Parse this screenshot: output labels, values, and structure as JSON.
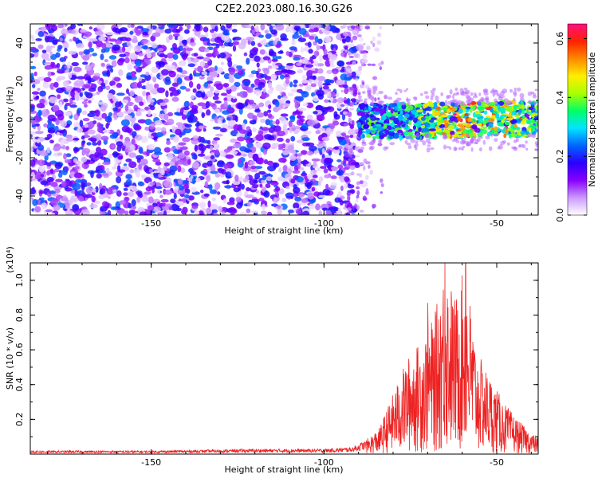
{
  "title": "C2E2.2023.080.16.30.G26",
  "chart_data": [
    {
      "type": "heatmap",
      "xlabel": "Height of straight line (km)",
      "ylabel": "Frequency (Hz)",
      "xlim": [
        -185,
        -38
      ],
      "ylim": [
        -50,
        50
      ],
      "x_ticks": [
        -150,
        -100,
        -50
      ],
      "y_ticks": [
        -40,
        -20,
        0,
        20,
        40
      ],
      "colorbar": {
        "label": "Normalized spectral amplitude",
        "range": [
          0.0,
          0.65
        ],
        "ticks": [
          0.0,
          0.2,
          0.4,
          0.6
        ],
        "colormap": [
          "#ffffff",
          "#cc99ff",
          "#8800ff",
          "#2a00ff",
          "#0066ff",
          "#00e5ff",
          "#00ff66",
          "#aaff00",
          "#ffee00",
          "#ff8800",
          "#ff2200",
          "#ff1080"
        ]
      },
      "regions": [
        {
          "x_range": [
            -185,
            -90
          ],
          "f_range": [
            -50,
            50
          ],
          "level": "low, scattered 0.05-0.2"
        },
        {
          "x_range": [
            -90,
            -38
          ],
          "f_range": [
            -10,
            8
          ],
          "level": "band 0.2-0.6, peaks near -60 and -45"
        }
      ],
      "grid": false
    },
    {
      "type": "line",
      "xlabel": "Height of straight line (km)",
      "ylabel": "SNR (10 * v/v)",
      "y_scale_label": "(x10⁴)",
      "xlim": [
        -185,
        -38
      ],
      "ylim": [
        0,
        1.1
      ],
      "x_ticks": [
        -150,
        -100,
        -50
      ],
      "y_ticks": [
        0.2,
        0.4,
        0.6,
        0.8,
        1.0
      ],
      "color": "#ee2222",
      "envelope": {
        "x": [
          -185,
          -150,
          -120,
          -100,
          -92,
          -88,
          -84,
          -80,
          -76,
          -72,
          -68,
          -65,
          -62,
          -59,
          -56,
          -52,
          -48,
          -44,
          -40,
          -38
        ],
        "y": [
          0.02,
          0.02,
          0.03,
          0.03,
          0.04,
          0.08,
          0.15,
          0.35,
          0.55,
          0.65,
          0.8,
          1.1,
          0.9,
          1.1,
          0.6,
          0.45,
          0.3,
          0.2,
          0.12,
          0.1
        ]
      },
      "peaks": [
        {
          "x": -65,
          "y": 1.1
        },
        {
          "x": -59,
          "y": 1.1
        },
        {
          "x": -70,
          "y": 0.87
        }
      ],
      "grid": false
    }
  ]
}
